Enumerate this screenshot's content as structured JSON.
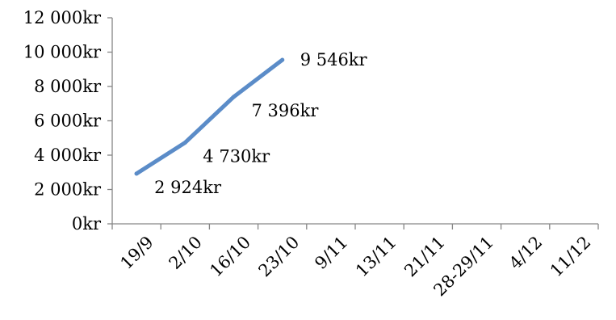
{
  "chart_data": {
    "type": "line",
    "categories": [
      "19/9",
      "2/10",
      "16/10",
      "23/10",
      "9/11",
      "13/11",
      "21/11",
      "28-29/11",
      "4/12",
      "11/12"
    ],
    "series": [
      {
        "values": [
          2924,
          4730,
          7396,
          9546,
          null,
          null,
          null,
          null,
          null,
          null
        ],
        "data_labels": [
          "2 924kr",
          "4 730kr",
          "7 396kr",
          "9 546kr"
        ]
      }
    ],
    "y_ticks": [
      0,
      2000,
      4000,
      6000,
      8000,
      10000,
      12000
    ],
    "y_tick_labels": [
      "0kr",
      "2 000kr",
      "4 000kr",
      "6 000kr",
      "8 000kr",
      "10 000kr",
      "12 000kr"
    ],
    "ylim": [
      0,
      12000
    ],
    "grid": false,
    "legend": "none",
    "line_color": "#5B8CC8",
    "axis_color": "#868686"
  }
}
